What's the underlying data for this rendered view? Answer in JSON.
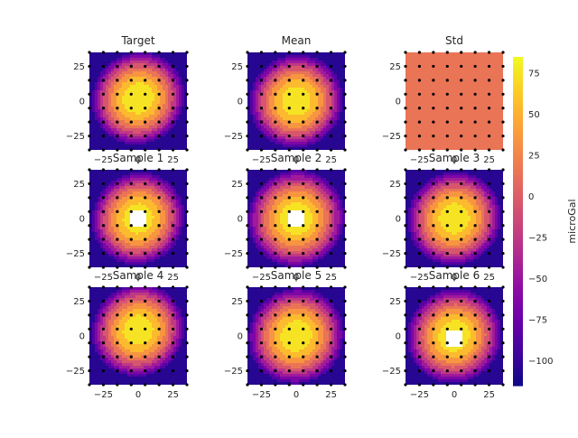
{
  "chart_data": {
    "type": "heatmap",
    "colormap": "plasma",
    "colorbar": {
      "label": "microGal",
      "vmin": -115,
      "vmax": 85,
      "ticks": [
        -100,
        -75,
        -50,
        -25,
        0,
        25,
        50,
        75
      ],
      "tick_labels": [
        "−100",
        "−75",
        "−50",
        "−25",
        "0",
        "25",
        "50",
        "75"
      ]
    },
    "extent": [
      -35,
      35
    ],
    "xticks": [
      -25,
      0,
      25
    ],
    "xtick_labels": [
      "−25",
      "0",
      "25"
    ],
    "yticks": [
      25,
      0,
      -25
    ],
    "ytick_labels": [
      "25",
      "0",
      "−25"
    ],
    "contour_levels": [
      -115,
      -95,
      -75,
      -55,
      -35,
      -15,
      5,
      25,
      45,
      65,
      85
    ],
    "grid_points": [
      -35,
      -25,
      -15,
      -5,
      5,
      15,
      25,
      35
    ],
    "panels": [
      {
        "title": "Target",
        "peak": 85,
        "falloff": 0.22,
        "xc": 0,
        "yc": 2,
        "tilt": 0.1,
        "gap": false
      },
      {
        "title": "Mean",
        "peak": 83,
        "falloff": 0.215,
        "xc": 0,
        "yc": 0,
        "tilt": 0.07,
        "gap": false
      },
      {
        "title": "Std",
        "uniform": 5,
        "gap": false
      },
      {
        "title": "Sample 1",
        "peak": 84,
        "falloff": 0.22,
        "xc": 0,
        "yc": 0,
        "tilt": 0.1,
        "gap": true,
        "gap_x": 0,
        "gap_y": 0
      },
      {
        "title": "Sample 2",
        "peak": 84,
        "falloff": 0.2,
        "xc": 0,
        "yc": 0,
        "tilt": 0.06,
        "gap": true,
        "gap_x": 0,
        "gap_y": 0
      },
      {
        "title": "Sample 3",
        "peak": 84,
        "falloff": 0.215,
        "xc": 0,
        "yc": 0,
        "tilt": 0.08,
        "gap": false
      },
      {
        "title": "Sample 4",
        "peak": 84,
        "falloff": 0.22,
        "xc": 0,
        "yc": 4,
        "tilt": 0.1,
        "gap": false
      },
      {
        "title": "Sample 5",
        "peak": 84,
        "falloff": 0.205,
        "xc": 0,
        "yc": 0,
        "tilt": 0.07,
        "gap": false
      },
      {
        "title": "Sample 6",
        "peak": 84,
        "falloff": 0.21,
        "xc": 0,
        "yc": 0,
        "tilt": 0.09,
        "gap": true,
        "gap_x": 0,
        "gap_y": -2
      }
    ]
  }
}
